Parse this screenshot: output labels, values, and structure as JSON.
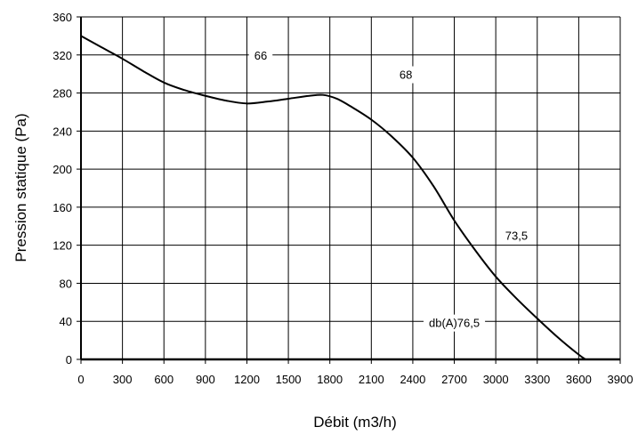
{
  "chart_data": {
    "type": "line",
    "title": "",
    "xlabel": "Débit (m3/h)",
    "ylabel": "Pression statique (Pa)",
    "xlim": [
      0,
      3900
    ],
    "ylim": [
      0,
      360
    ],
    "x_ticks": [
      "0",
      "300",
      "600",
      "900",
      "1200",
      "1500",
      "1800",
      "2100",
      "2400",
      "2700",
      "3000",
      "3300",
      "3600",
      "3900"
    ],
    "y_ticks": [
      "0",
      "40",
      "80",
      "120",
      "160",
      "200",
      "240",
      "280",
      "320",
      "360"
    ],
    "grid": true,
    "series": [
      {
        "x": [
          0,
          150,
          300,
          450,
          600,
          750,
          900,
          1050,
          1200,
          1350,
          1500,
          1650,
          1750,
          1850,
          1950,
          2100,
          2250,
          2400,
          2550,
          2700,
          2850,
          3000,
          3150,
          3300,
          3450,
          3600,
          3650
        ],
        "y": [
          340,
          328,
          316,
          303,
          291,
          283,
          277,
          272,
          269,
          271,
          274,
          277,
          278,
          274,
          266,
          252,
          234,
          212,
          182,
          146,
          115,
          87,
          64,
          43,
          23,
          5,
          0
        ],
        "color": "#000000"
      }
    ],
    "annotations": [
      {
        "text": "66",
        "x": 1300,
        "y": 315
      },
      {
        "text": "68",
        "x": 2350,
        "y": 295
      },
      {
        "text": "73,5",
        "x": 3150,
        "y": 126
      },
      {
        "text": "db(A)76,5",
        "x": 2700,
        "y": 34
      }
    ]
  }
}
